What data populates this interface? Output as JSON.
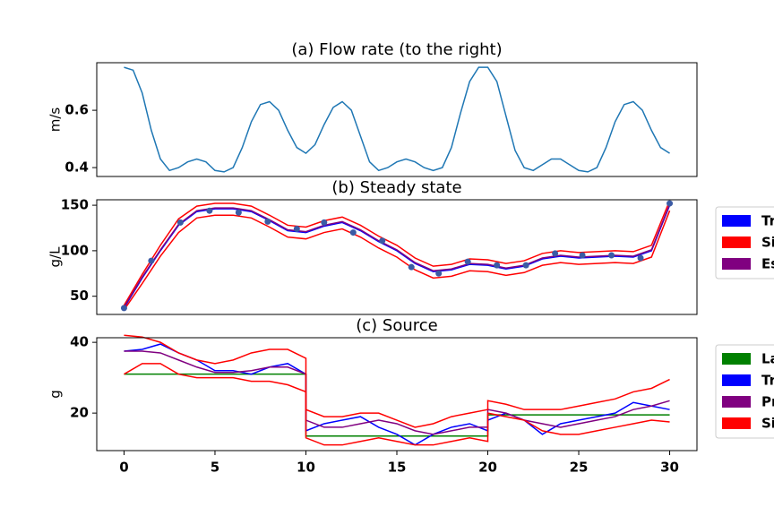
{
  "chart_data": [
    {
      "type": "line",
      "title": "(a) Flow rate (to the right)",
      "ylabel": "m/s",
      "x": [
        0,
        0.5,
        1,
        1.5,
        2,
        2.5,
        3,
        3.5,
        4,
        4.5,
        5,
        5.5,
        6,
        6.5,
        7,
        7.5,
        8,
        8.5,
        9,
        9.5,
        10,
        10.5,
        11,
        11.5,
        12,
        12.5,
        13,
        13.5,
        14,
        14.5,
        15,
        15.5,
        16,
        16.5,
        17,
        17.5,
        18,
        18.5,
        19,
        19.5,
        20,
        20.5,
        21,
        21.5,
        22,
        22.5,
        23,
        23.5,
        24,
        24.5,
        25,
        25.5,
        26,
        26.5,
        27,
        27.5,
        28,
        28.5,
        29,
        29.5,
        30
      ],
      "series": [
        {
          "color": "#1f77b4",
          "values": [
            0.75,
            0.74,
            0.66,
            0.53,
            0.43,
            0.39,
            0.4,
            0.42,
            0.43,
            0.42,
            0.39,
            0.385,
            0.4,
            0.47,
            0.56,
            0.62,
            0.63,
            0.6,
            0.53,
            0.47,
            0.45,
            0.48,
            0.55,
            0.61,
            0.63,
            0.6,
            0.51,
            0.42,
            0.39,
            0.4,
            0.42,
            0.43,
            0.42,
            0.4,
            0.39,
            0.4,
            0.47,
            0.59,
            0.7,
            0.75,
            0.75,
            0.7,
            0.58,
            0.46,
            0.4,
            0.39,
            0.41,
            0.43,
            0.43,
            0.41,
            0.39,
            0.385,
            0.4,
            0.47,
            0.56,
            0.62,
            0.63,
            0.6,
            0.53,
            0.47,
            0.45
          ]
        }
      ],
      "xlim": [
        -1.5,
        31.5
      ],
      "ylim": [
        0.369,
        0.766
      ],
      "yticks": [
        0.4,
        0.6
      ]
    },
    {
      "type": "line",
      "title": "(b) Steady state",
      "ylabel": "g/L",
      "legend": "outside-right",
      "x": [
        0,
        1,
        2,
        3,
        4,
        5,
        6,
        7,
        8,
        9,
        10,
        11,
        12,
        13,
        14,
        15,
        16,
        17,
        18,
        19,
        20,
        21,
        22,
        23,
        24,
        25,
        26,
        27,
        28,
        29,
        30
      ],
      "series": [
        {
          "name": "Tr",
          "color": "#0000ff",
          "values": [
            37,
            70,
            100,
            128,
            143,
            146,
            146,
            143,
            133,
            122,
            120,
            127,
            131,
            122,
            110,
            100,
            86,
            77,
            79,
            85,
            84,
            80,
            83,
            91,
            94,
            92,
            93,
            94,
            93,
            100,
            150
          ]
        },
        {
          "name": "Si",
          "color": "#ff0000",
          "values": [
            40,
            74,
            106,
            135,
            149,
            152,
            152,
            149,
            139,
            128,
            126,
            133,
            137,
            128,
            116,
            106,
            92,
            83,
            85,
            91,
            90,
            86,
            89,
            97,
            100,
            98,
            99,
            100,
            99,
            106,
            155
          ]
        },
        {
          "color": "#ff0000",
          "values": [
            35,
            64,
            94,
            120,
            136,
            139,
            139,
            136,
            126,
            115,
            113,
            120,
            124,
            115,
            103,
            93,
            79,
            70,
            72,
            78,
            77,
            73,
            76,
            84,
            87,
            85,
            86,
            87,
            86,
            93,
            144
          ]
        },
        {
          "name": "Es",
          "color": "#800080",
          "values": [
            38,
            71,
            101,
            129,
            144,
            147,
            147,
            144,
            134,
            123,
            121,
            128,
            132,
            123,
            111,
            101,
            87,
            78,
            80,
            86,
            85,
            81,
            84,
            92,
            95,
            93,
            94,
            95,
            94,
            101,
            151
          ]
        }
      ],
      "points": {
        "color": "#3b5ba5",
        "x": [
          0,
          1.5,
          3.1,
          4.7,
          6.3,
          7.9,
          9.5,
          11,
          12.6,
          14.2,
          15.8,
          17.3,
          18.9,
          20.5,
          22.1,
          23.7,
          25.2,
          26.8,
          28.4,
          30
        ],
        "values": [
          37,
          89,
          131,
          144,
          142,
          132,
          124,
          131,
          120,
          111,
          82,
          75,
          88,
          84,
          84,
          97,
          95,
          95,
          92,
          152
        ]
      },
      "xlim": [
        -1.5,
        31.5
      ],
      "ylim": [
        30,
        156
      ],
      "yticks": [
        50,
        100,
        150
      ]
    },
    {
      "type": "line",
      "title": "(c) Source",
      "ylabel": "g",
      "legend": "outside-right",
      "x": [
        0,
        1,
        2,
        3,
        4,
        5,
        6,
        7,
        8,
        9,
        10,
        10,
        11,
        12,
        13,
        14,
        15,
        16,
        17,
        18,
        19,
        20,
        20,
        21,
        22,
        23,
        24,
        25,
        26,
        27,
        28,
        29,
        30
      ],
      "series": [
        {
          "name": "La",
          "color": "#008000",
          "values": [
            31,
            31,
            31,
            31,
            31,
            31,
            31,
            31,
            31,
            31,
            31,
            13.5,
            13.5,
            13.5,
            13.5,
            13.5,
            13.5,
            13.5,
            13.5,
            13.5,
            13.5,
            13.5,
            19.5,
            19.5,
            19.5,
            19.5,
            19.5,
            19.5,
            19.5,
            19.5,
            19.5,
            19.5,
            19.5
          ]
        },
        {
          "name": "Tr",
          "color": "#0000ff",
          "values": [
            37.5,
            38,
            39.5,
            37,
            35,
            32,
            32,
            31,
            33,
            34,
            31,
            15,
            17,
            18,
            19,
            16,
            14,
            11,
            14,
            16,
            17,
            15,
            18,
            20,
            18,
            14,
            17,
            18,
            19,
            20,
            23,
            22,
            21
          ]
        },
        {
          "name": "Pr",
          "color": "#800080",
          "values": [
            37.5,
            37.5,
            37,
            35,
            33,
            31.5,
            31.5,
            32,
            33,
            33,
            31,
            18,
            16,
            16,
            17,
            18,
            17,
            15,
            14,
            15,
            16,
            16,
            21,
            20,
            18,
            17,
            16,
            17,
            18,
            19,
            21,
            22,
            23.5
          ]
        },
        {
          "name": "Si",
          "color": "#ff0000",
          "values": [
            42,
            41.5,
            40,
            37,
            35,
            34,
            35,
            37,
            38,
            38,
            35.5,
            21,
            19,
            19,
            20,
            20,
            18,
            16,
            17,
            19,
            20,
            21,
            23.5,
            22.5,
            21,
            21,
            21,
            22,
            23,
            24,
            26,
            27,
            29.5
          ]
        },
        {
          "color": "#ff0000",
          "values": [
            31,
            34,
            34,
            31,
            30,
            30,
            30,
            29,
            29,
            28,
            26,
            13,
            11,
            11,
            12,
            13,
            12,
            11,
            11,
            12,
            13,
            12,
            20,
            19,
            18,
            15,
            14,
            14,
            15,
            16,
            17,
            18,
            17.5
          ]
        }
      ],
      "xlim": [
        -1.5,
        31.5
      ],
      "ylim": [
        9.4,
        41.3
      ],
      "yticks": [
        20,
        40
      ],
      "xticks": [
        0,
        5,
        10,
        15,
        20,
        25,
        30
      ]
    }
  ]
}
